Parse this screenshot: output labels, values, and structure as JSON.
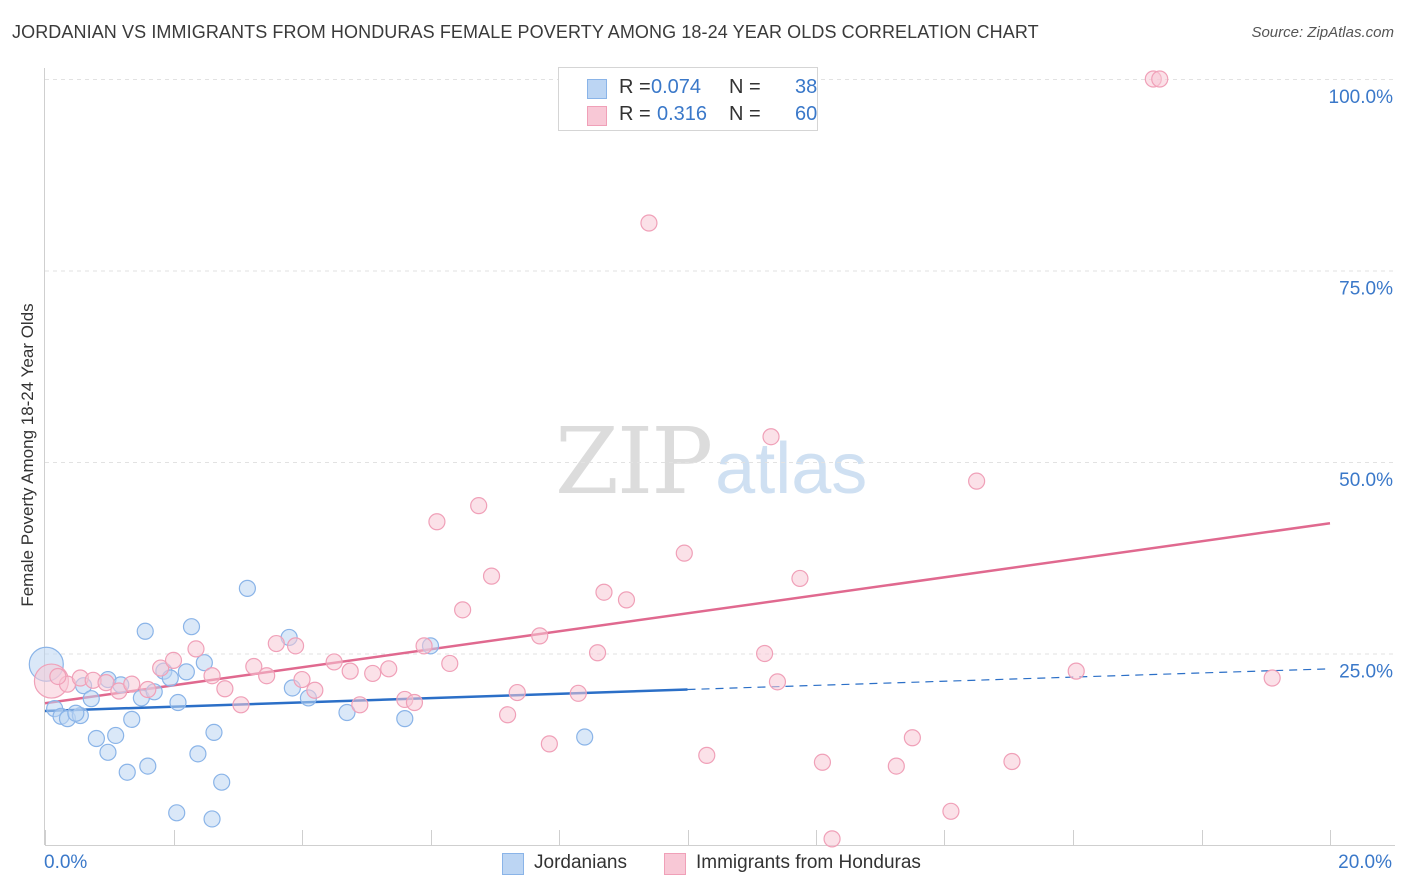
{
  "chart_data": {
    "type": "scatter",
    "title": "JORDANIAN VS IMMIGRANTS FROM HONDURAS FEMALE POVERTY AMONG 18-24 YEAR OLDS CORRELATION CHART",
    "source": "Source: ZipAtlas.com",
    "xlabel": "",
    "ylabel": "Female Poverty Among 18-24 Year Olds",
    "xlim": [
      0,
      20
    ],
    "ylim": [
      0,
      100
    ],
    "x_tick_labels": [
      "0.0%",
      "20.0%"
    ],
    "y_tick_labels": [
      "100.0%",
      "75.0%",
      "50.0%",
      "25.0%"
    ],
    "y_ticks": [
      100,
      75,
      50,
      25
    ],
    "grid": true,
    "watermark": {
      "zip": "ZIP",
      "atlas": "atlas"
    },
    "legend": {
      "rows": [
        {
          "r_label": "R = ",
          "r_value": "0.074",
          "n_label": "N = ",
          "n_value": "38"
        },
        {
          "r_label": "R = ",
          "r_value": "0.316",
          "n_label": "N = ",
          "n_value": "60"
        }
      ]
    },
    "series": [
      {
        "name": "Jordanians",
        "color": "#8ab4e8",
        "fill": "#bcd5f3",
        "line_color": "#2b6fc7",
        "trend": {
          "x0": 0,
          "y0": 17.5,
          "x1": 10,
          "y1": 20.3,
          "dash_to_x": 20,
          "dash_to_y": 23.0
        },
        "points": [
          {
            "x": 0.02,
            "y": 23.6,
            "big": true
          },
          {
            "x": 0.15,
            "y": 17.8
          },
          {
            "x": 0.25,
            "y": 16.8
          },
          {
            "x": 0.35,
            "y": 16.5
          },
          {
            "x": 0.55,
            "y": 16.9
          },
          {
            "x": 0.6,
            "y": 20.8
          },
          {
            "x": 0.72,
            "y": 19.1
          },
          {
            "x": 0.8,
            "y": 13.9
          },
          {
            "x": 0.98,
            "y": 21.6
          },
          {
            "x": 0.98,
            "y": 12.1
          },
          {
            "x": 1.1,
            "y": 14.3
          },
          {
            "x": 1.18,
            "y": 20.9
          },
          {
            "x": 1.28,
            "y": 9.5
          },
          {
            "x": 1.35,
            "y": 16.4
          },
          {
            "x": 1.5,
            "y": 19.2
          },
          {
            "x": 1.56,
            "y": 27.9
          },
          {
            "x": 1.6,
            "y": 10.3
          },
          {
            "x": 1.7,
            "y": 20.0
          },
          {
            "x": 1.85,
            "y": 22.7
          },
          {
            "x": 1.95,
            "y": 21.8
          },
          {
            "x": 2.05,
            "y": 4.2
          },
          {
            "x": 2.07,
            "y": 18.6
          },
          {
            "x": 2.2,
            "y": 22.6
          },
          {
            "x": 2.28,
            "y": 28.5
          },
          {
            "x": 2.38,
            "y": 11.9
          },
          {
            "x": 2.48,
            "y": 23.8
          },
          {
            "x": 2.6,
            "y": 3.4
          },
          {
            "x": 2.63,
            "y": 14.7
          },
          {
            "x": 2.75,
            "y": 8.2
          },
          {
            "x": 3.15,
            "y": 33.5
          },
          {
            "x": 3.8,
            "y": 27.1
          },
          {
            "x": 3.85,
            "y": 20.5
          },
          {
            "x": 4.1,
            "y": 19.2
          },
          {
            "x": 4.7,
            "y": 17.3
          },
          {
            "x": 6.0,
            "y": 26.0
          },
          {
            "x": 5.6,
            "y": 16.5
          },
          {
            "x": 8.4,
            "y": 14.1
          },
          {
            "x": 0.48,
            "y": 17.2
          }
        ]
      },
      {
        "name": "Immigrants from Honduras",
        "color": "#f0a0b8",
        "fill": "#f8c8d6",
        "line_color": "#e0698f",
        "trend": {
          "x0": 0,
          "y0": 18.5,
          "x1": 20,
          "y1": 42.0
        },
        "points": [
          {
            "x": 0.1,
            "y": 21.4,
            "big": true
          },
          {
            "x": 0.35,
            "y": 21.0
          },
          {
            "x": 0.55,
            "y": 21.8
          },
          {
            "x": 0.75,
            "y": 21.5
          },
          {
            "x": 0.95,
            "y": 21.2
          },
          {
            "x": 1.15,
            "y": 20.1
          },
          {
            "x": 1.35,
            "y": 21.0
          },
          {
            "x": 1.6,
            "y": 20.3
          },
          {
            "x": 1.8,
            "y": 23.1
          },
          {
            "x": 2.0,
            "y": 24.1
          },
          {
            "x": 2.35,
            "y": 25.6
          },
          {
            "x": 2.6,
            "y": 22.1
          },
          {
            "x": 2.8,
            "y": 20.4
          },
          {
            "x": 3.05,
            "y": 18.3
          },
          {
            "x": 3.25,
            "y": 23.3
          },
          {
            "x": 3.45,
            "y": 22.1
          },
          {
            "x": 3.6,
            "y": 26.3
          },
          {
            "x": 3.9,
            "y": 26.0
          },
          {
            "x": 4.0,
            "y": 21.6
          },
          {
            "x": 4.2,
            "y": 20.2
          },
          {
            "x": 4.5,
            "y": 23.9
          },
          {
            "x": 4.75,
            "y": 22.7
          },
          {
            "x": 4.9,
            "y": 18.3
          },
          {
            "x": 5.1,
            "y": 22.4
          },
          {
            "x": 5.35,
            "y": 23.0
          },
          {
            "x": 5.6,
            "y": 19.0
          },
          {
            "x": 5.75,
            "y": 18.6
          },
          {
            "x": 5.9,
            "y": 26.0
          },
          {
            "x": 6.1,
            "y": 42.2
          },
          {
            "x": 6.3,
            "y": 23.7
          },
          {
            "x": 6.5,
            "y": 30.7
          },
          {
            "x": 6.75,
            "y": 44.3
          },
          {
            "x": 6.95,
            "y": 35.1
          },
          {
            "x": 7.2,
            "y": 17.0
          },
          {
            "x": 7.35,
            "y": 19.9
          },
          {
            "x": 7.7,
            "y": 27.3
          },
          {
            "x": 7.85,
            "y": 13.2
          },
          {
            "x": 8.3,
            "y": 19.8
          },
          {
            "x": 8.6,
            "y": 25.1
          },
          {
            "x": 8.7,
            "y": 33.0
          },
          {
            "x": 9.05,
            "y": 32.0
          },
          {
            "x": 9.4,
            "y": 81.2
          },
          {
            "x": 9.95,
            "y": 38.1
          },
          {
            "x": 10.3,
            "y": 11.7
          },
          {
            "x": 11.3,
            "y": 53.3
          },
          {
            "x": 11.2,
            "y": 25.0
          },
          {
            "x": 11.4,
            "y": 21.3
          },
          {
            "x": 11.75,
            "y": 34.8
          },
          {
            "x": 12.1,
            "y": 10.8
          },
          {
            "x": 12.25,
            "y": 0.8
          },
          {
            "x": 13.25,
            "y": 10.3
          },
          {
            "x": 13.5,
            "y": 14.0
          },
          {
            "x": 14.1,
            "y": 4.4
          },
          {
            "x": 14.5,
            "y": 47.5
          },
          {
            "x": 15.05,
            "y": 10.9
          },
          {
            "x": 16.05,
            "y": 22.7
          },
          {
            "x": 17.25,
            "y": 100.0
          },
          {
            "x": 17.35,
            "y": 100.0
          },
          {
            "x": 19.1,
            "y": 21.8
          },
          {
            "x": 0.2,
            "y": 22.0
          }
        ]
      }
    ]
  }
}
